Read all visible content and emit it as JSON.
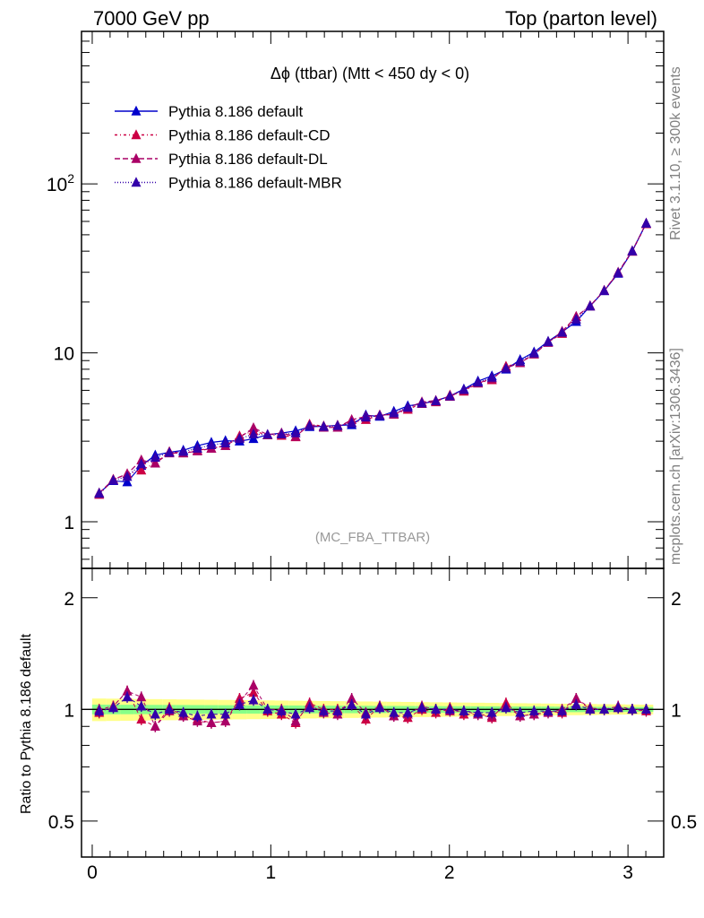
{
  "header": {
    "left": "7000 GeV pp",
    "right": "Top (parton level)"
  },
  "side": {
    "rivet": "Rivet 3.1.10, ≥ 300k events",
    "mcplots": "mcplots.cern.ch [arXiv:1306.3436]"
  },
  "ratio_ylabel": "Ratio to Pythia 8.186 default",
  "chart_data": [
    {
      "type": "line",
      "title": "Δϕ (ttbar) (Mtt < 450 dy < 0)",
      "analysis_tag": "(MC_FBA_TTBAR)",
      "xlim": [
        -0.06,
        3.2
      ],
      "ylim": [
        0.53,
        800
      ],
      "yscale": "log",
      "y_tick_labels": [
        "1",
        "10",
        "10²"
      ],
      "x_tick_labels": [
        "0",
        "1",
        "2",
        "3"
      ],
      "legend_position": "top-left",
      "x": [
        0.039,
        0.118,
        0.196,
        0.275,
        0.353,
        0.432,
        0.51,
        0.589,
        0.667,
        0.746,
        0.825,
        0.903,
        0.982,
        1.06,
        1.139,
        1.217,
        1.296,
        1.374,
        1.453,
        1.532,
        1.61,
        1.689,
        1.767,
        1.846,
        1.924,
        2.003,
        2.081,
        2.16,
        2.238,
        2.317,
        2.396,
        2.474,
        2.553,
        2.631,
        2.71,
        2.788,
        2.867,
        2.945,
        3.024,
        3.102
      ],
      "series": [
        {
          "name": "Pythia 8.186 default",
          "color": "#0000cc",
          "dash": "solid",
          "marker": "triangle",
          "values": [
            1.48,
            1.75,
            1.72,
            2.15,
            2.48,
            2.58,
            2.65,
            2.82,
            2.95,
            3.02,
            3.0,
            3.1,
            3.28,
            3.35,
            3.45,
            3.65,
            3.68,
            3.72,
            3.75,
            4.28,
            4.2,
            4.5,
            4.85,
            5.0,
            5.2,
            5.55,
            6.1,
            6.8,
            7.3,
            8.0,
            9.1,
            10.1,
            11.7,
            13.3,
            15.3,
            18.9,
            23.3,
            29.5,
            40.0,
            58.5
          ]
        },
        {
          "name": "Pythia 8.186 default-CD",
          "color": "#cc0044",
          "dash": "3,3,1,3",
          "marker": "triangle",
          "values": [
            1.45,
            1.78,
            1.92,
            2.02,
            2.22,
            2.6,
            2.55,
            2.65,
            2.72,
            2.82,
            3.22,
            3.45,
            3.26,
            3.24,
            3.18,
            3.78,
            3.68,
            3.72,
            3.85,
            4.02,
            4.28,
            4.32,
            4.62,
            5.02,
            5.12,
            5.62,
            5.92,
            6.62,
            6.92,
            8.32,
            8.72,
            9.82,
            11.6,
            13.0,
            16.4,
            18.9,
            23.4,
            29.8,
            39.8,
            58.0
          ]
        },
        {
          "name": "Pythia 8.186 default-DL",
          "color": "#aa0066",
          "dash": "6,3",
          "marker": "triangle",
          "values": [
            1.48,
            1.78,
            1.92,
            2.32,
            2.22,
            2.55,
            2.55,
            2.62,
            2.72,
            2.82,
            3.15,
            3.6,
            3.28,
            3.35,
            3.2,
            3.75,
            3.62,
            3.62,
            4.02,
            4.2,
            4.28,
            4.32,
            4.72,
            5.12,
            5.22,
            5.52,
            6.02,
            6.62,
            7.02,
            8.12,
            8.72,
            9.82,
            11.5,
            13.4,
            16.4,
            19.0,
            23.4,
            30.0,
            40.2,
            58.5
          ]
        },
        {
          "name": "Pythia 8.186 default-MBR",
          "color": "#3300aa",
          "dash": "1,2",
          "marker": "triangle",
          "values": [
            1.47,
            1.76,
            1.85,
            2.2,
            2.4,
            2.57,
            2.6,
            2.72,
            2.85,
            2.92,
            3.1,
            3.3,
            3.28,
            3.3,
            3.35,
            3.7,
            3.66,
            3.7,
            3.85,
            4.15,
            4.25,
            4.4,
            4.75,
            5.05,
            5.18,
            5.55,
            6.05,
            6.7,
            7.15,
            8.1,
            8.9,
            9.95,
            11.6,
            13.2,
            15.8,
            18.9,
            23.3,
            29.7,
            40.0,
            58.3
          ]
        }
      ]
    },
    {
      "type": "line",
      "ylabel": "Ratio to Pythia 8.186 default",
      "xlim": [
        -0.06,
        3.2
      ],
      "ylim": [
        0.4,
        2.4
      ],
      "yscale": "log",
      "y_tick_labels": [
        "0.5",
        "1",
        "2"
      ],
      "x_tick_labels": [
        "0",
        "1",
        "2",
        "3"
      ],
      "band_inner_color": "#88ff88",
      "band_outer_color": "#ffff88",
      "series": [
        {
          "name": "Pythia 8.186 default-CD",
          "color": "#cc0044",
          "values": [
            0.98,
            1.02,
            1.12,
            0.94,
            0.9,
            1.01,
            0.96,
            0.94,
            0.92,
            0.93,
            1.07,
            1.11,
            0.99,
            0.97,
            0.92,
            1.04,
            1.0,
            1.0,
            1.03,
            0.94,
            1.02,
            0.96,
            0.95,
            1.0,
            0.98,
            1.01,
            0.97,
            0.97,
            0.95,
            1.04,
            0.96,
            0.97,
            0.99,
            0.98,
            1.07,
            1.0,
            1.0,
            1.01,
            1.0,
            0.99
          ]
        },
        {
          "name": "Pythia 8.186 default-DL",
          "color": "#aa0066",
          "values": [
            1.0,
            1.02,
            1.12,
            1.08,
            0.9,
            0.99,
            0.96,
            0.93,
            0.92,
            0.93,
            1.05,
            1.16,
            1.0,
            1.0,
            0.93,
            1.03,
            0.98,
            0.97,
            1.07,
            0.98,
            1.02,
            0.96,
            0.97,
            1.02,
            1.0,
            0.99,
            0.99,
            0.97,
            0.96,
            1.02,
            0.96,
            0.97,
            0.98,
            1.0,
            1.07,
            1.01,
            1.0,
            1.02,
            1.0,
            1.0
          ]
        },
        {
          "name": "Pythia 8.186 default-MBR",
          "color": "#3300aa",
          "values": [
            0.99,
            1.01,
            1.08,
            1.02,
            0.97,
            1.0,
            0.98,
            0.96,
            0.97,
            0.97,
            1.03,
            1.06,
            1.0,
            0.99,
            0.97,
            1.01,
            0.99,
            0.99,
            1.03,
            0.97,
            1.01,
            0.98,
            0.98,
            1.01,
            1.0,
            1.0,
            0.99,
            0.98,
            0.98,
            1.01,
            0.98,
            0.99,
            0.99,
            0.99,
            1.03,
            1.0,
            1.0,
            1.01,
            1.0,
            1.0
          ]
        }
      ]
    }
  ]
}
